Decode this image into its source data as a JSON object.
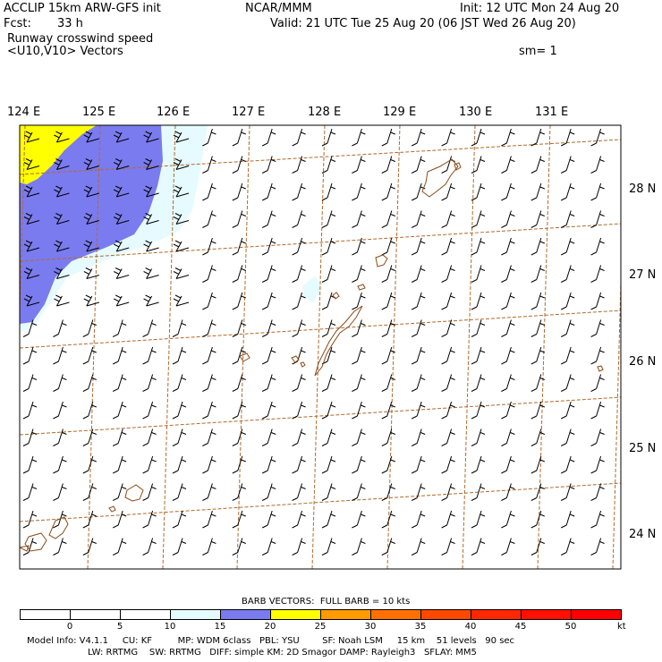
{
  "header": {
    "title": "ACCLIP 15km ARW-GFS init",
    "institution": "NCAR/MMM",
    "init": "Init: 12 UTC Mon 24 Aug 20",
    "fcst_label": "Fcst:",
    "fcst_value": "33 h",
    "valid": "Valid: 21 UTC Tue 25 Aug 20 (06 JST Wed 26 Aug 20)",
    "field_name": "Runway crosswind speed",
    "vector_label": "<U10,V10> Vectors",
    "smoothing": "sm= 1"
  },
  "map": {
    "lon_labels": [
      "124 E",
      "125 E",
      "126 E",
      "127 E",
      "128 E",
      "129 E",
      "130 E",
      "131 E"
    ],
    "lat_labels": [
      "28 N",
      "27 N",
      "26 N",
      "25 N",
      "24 N"
    ],
    "border_color": "#000000",
    "gridline_color": "#b06a2c",
    "coast_color": "#8b4a16"
  },
  "legend": {
    "barb_note": "BARB VECTORS:  FULL BARB = 10 kts",
    "tick_labels": [
      "0",
      "5",
      "10",
      "15",
      "20",
      "25",
      "30",
      "35",
      "40",
      "45",
      "50"
    ],
    "unit": "kt",
    "bin_colors": [
      "#ffffff",
      "#ffffff",
      "#ffffff",
      "#e6fbff",
      "#7b7bf0",
      "#ffff00",
      "#ff9a00",
      "#ff7000",
      "#ff4800",
      "#ff2800",
      "#ff1000",
      "#ff0000"
    ]
  },
  "model_info": {
    "line1": "Model Info: V4.1.1     CU: KF         MP: WDM 6class   PBL: YSU        SF: Noah LSM     15 km    51 levels   90 sec",
    "line2": "LW: RRTMG    SW: RRTMG   DIFF: simple KM: 2D Smagor DAMP: Rayleigh3   SFLAY: MM5"
  }
}
